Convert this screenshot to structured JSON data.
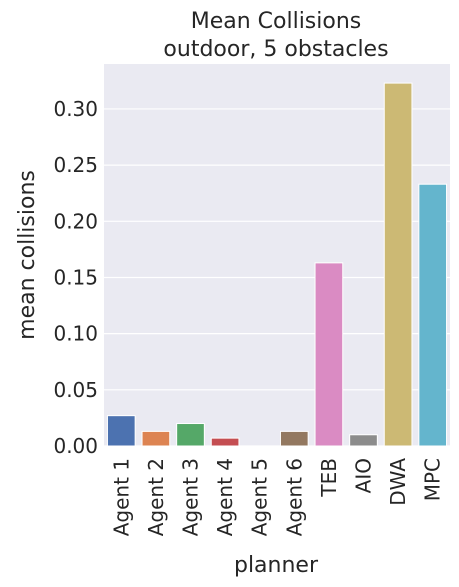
{
  "chart_data": {
    "type": "bar",
    "title_lines": [
      "Mean Collisions",
      "outdoor, 5 obstacles"
    ],
    "xlabel": "planner",
    "ylabel": "mean collisions",
    "categories": [
      "Agent 1",
      "Agent 2",
      "Agent 3",
      "Agent 4",
      "Agent 5",
      "Agent 6",
      "TEB",
      "AIO",
      "DWA",
      "MPC"
    ],
    "values": [
      0.027,
      0.013,
      0.02,
      0.007,
      0.0,
      0.013,
      0.163,
      0.01,
      0.323,
      0.233
    ],
    "colors": [
      "#4c72b0",
      "#dd8452",
      "#55a868",
      "#c44e52",
      "#8172b3",
      "#937860",
      "#da8bc3",
      "#8c8c8c",
      "#ccb974",
      "#64b5cd"
    ],
    "ylim": [
      0,
      0.34
    ],
    "yticks": [
      "0.00",
      "0.05",
      "0.10",
      "0.15",
      "0.20",
      "0.25",
      "0.30"
    ],
    "background": "#eaeaf2",
    "grid": true
  }
}
